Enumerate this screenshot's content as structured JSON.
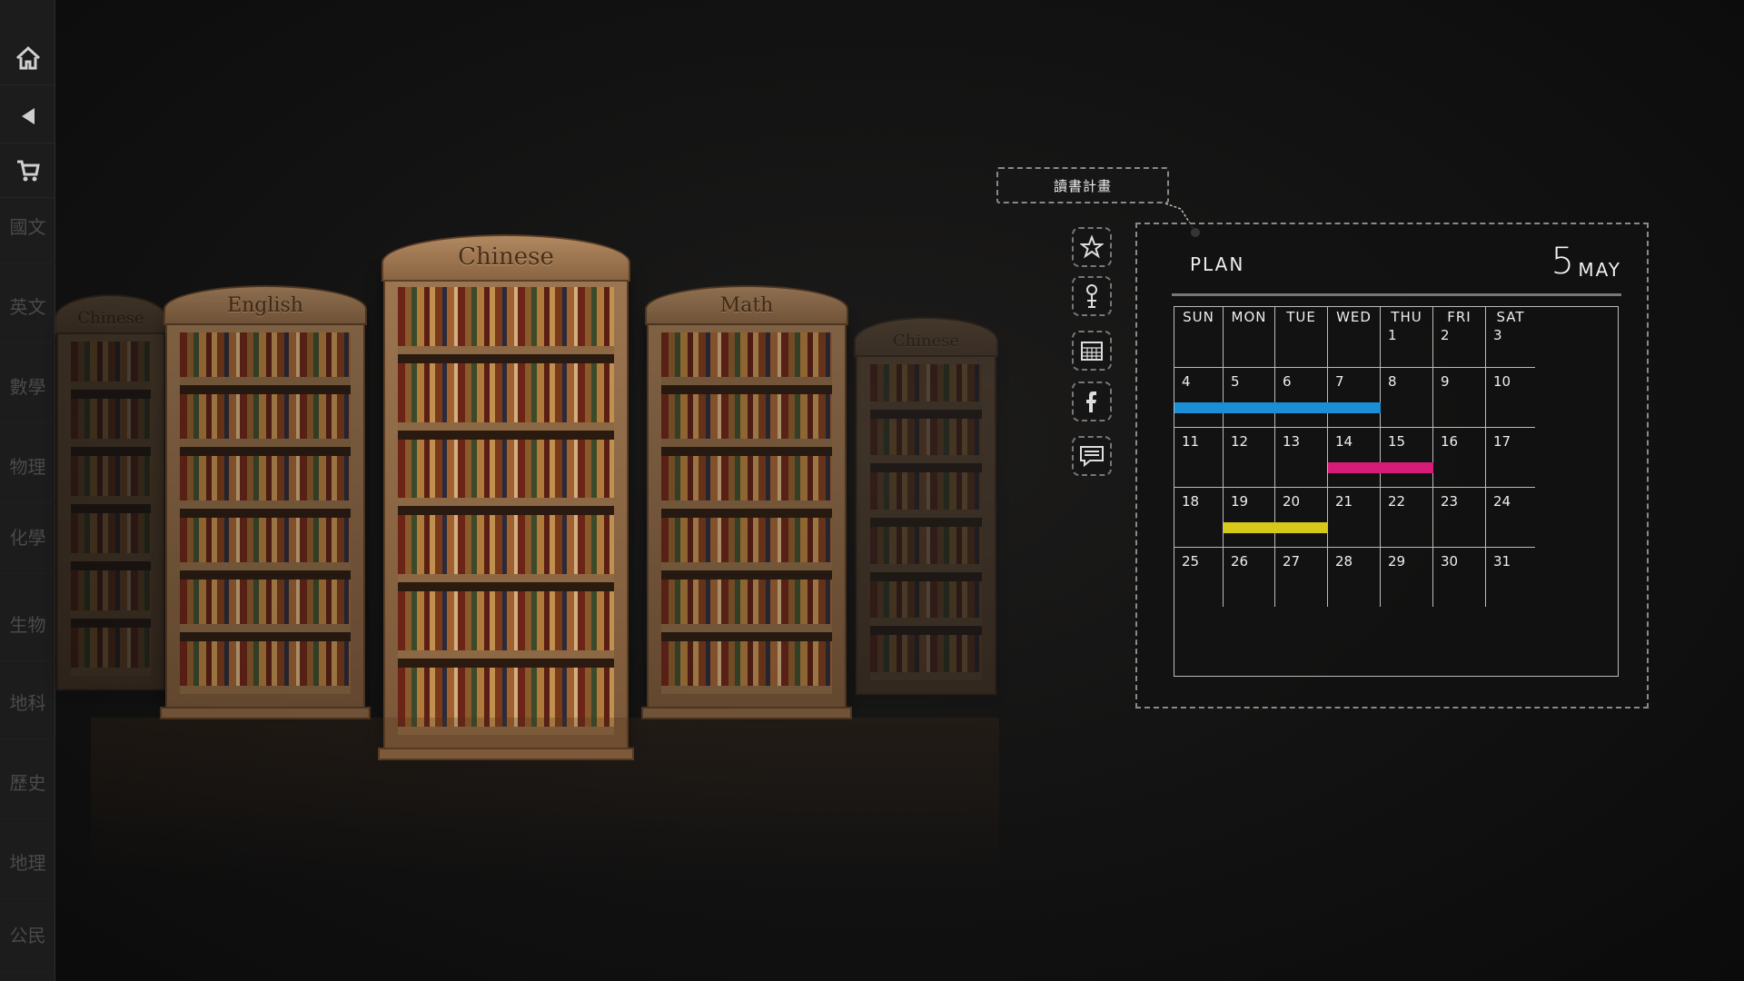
{
  "sidebar": {
    "nav": [
      {
        "name": "home",
        "icon": "home-icon"
      },
      {
        "name": "back",
        "icon": "back-arrow-icon"
      },
      {
        "name": "cart",
        "icon": "cart-icon"
      }
    ],
    "subjects": [
      "國文",
      "英文",
      "數學",
      "物理",
      "化學",
      "生物",
      "地科",
      "歷史",
      "地理",
      "公民"
    ]
  },
  "shelves": {
    "labels": [
      "Chinese",
      "English",
      "Chinese",
      "Math",
      "Chinese"
    ]
  },
  "tooltip": {
    "text": "讀書計畫"
  },
  "tools": [
    "star-icon",
    "person-icon",
    "calendar-icon",
    "facebook-icon",
    "chat-icon"
  ],
  "calendar": {
    "plan_label": "PLAN",
    "month_number": "5",
    "month_name": "MAY",
    "weekdays": [
      "SUN",
      "MON",
      "TUE",
      "WED",
      "THU",
      "FRI",
      "SAT"
    ],
    "weeks": [
      [
        "",
        "",
        "",
        "",
        "1",
        "2",
        "3"
      ],
      [
        "4",
        "5",
        "6",
        "7",
        "8",
        "9",
        "10"
      ],
      [
        "11",
        "12",
        "13",
        "14",
        "15",
        "16",
        "17"
      ],
      [
        "18",
        "19",
        "20",
        "21",
        "22",
        "23",
        "24"
      ],
      [
        "25",
        "26",
        "27",
        "28",
        "29",
        "30",
        "31"
      ]
    ],
    "events": [
      {
        "color": "#1a8fd6",
        "start": "4",
        "end": "7"
      },
      {
        "color": "#d81b78",
        "start": "14",
        "end": "15"
      },
      {
        "color": "#d8c81a",
        "start": "19",
        "end": "20"
      }
    ]
  }
}
